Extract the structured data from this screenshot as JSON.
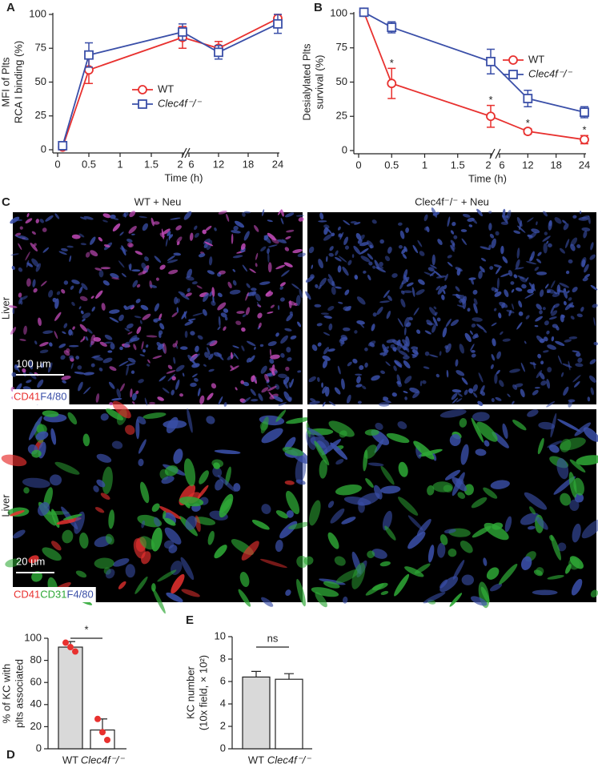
{
  "chart_data": [
    {
      "type": "line",
      "label": "A",
      "ylabel": [
        "MFI of Plts",
        "RCA I binding (%)"
      ],
      "xlabel": "Time (h)",
      "x": [
        0.08,
        0.5,
        2,
        12,
        24
      ],
      "x_segments": [
        {
          "xlim": [
            0,
            2
          ],
          "xticks": [
            0,
            0.5,
            1,
            1.5,
            2
          ]
        },
        {
          "xlim": [
            6,
            24
          ],
          "xticks": [
            6,
            12,
            18,
            24
          ]
        }
      ],
      "ylim": [
        0,
        100
      ],
      "yticks": [
        0,
        25,
        50,
        75,
        100
      ],
      "legend": "center",
      "series": [
        {
          "name": "WT",
          "color": "#e8312f",
          "marker": "circle",
          "values": [
            2,
            59,
            83,
            75,
            97
          ],
          "errors": [
            2,
            10,
            8,
            5,
            3
          ]
        },
        {
          "name": "Clec4f⁻/⁻",
          "color": "#3a4fa8",
          "marker": "square",
          "values": [
            3,
            70,
            87,
            72,
            93
          ],
          "errors": [
            2,
            9,
            6,
            5,
            7
          ]
        }
      ]
    },
    {
      "type": "line",
      "label": "B",
      "ylabel": [
        "Desialylated Plts",
        "survival (%)"
      ],
      "xlabel": "Time (h)",
      "x": [
        0.08,
        0.5,
        2,
        12,
        24
      ],
      "x_segments": [
        {
          "xlim": [
            0,
            2
          ],
          "xticks": [
            0,
            0.5,
            1,
            1.5,
            2
          ]
        },
        {
          "xlim": [
            6,
            24
          ],
          "xticks": [
            6,
            12,
            18,
            24
          ]
        }
      ],
      "ylim": [
        0,
        100
      ],
      "yticks": [
        0,
        25,
        50,
        75,
        100
      ],
      "legend": "upper right",
      "annotations": [
        {
          "text": "*",
          "x": 0.5
        },
        {
          "text": "*",
          "x": 2
        },
        {
          "text": "*",
          "x": 12
        },
        {
          "text": "*",
          "x": 24
        }
      ],
      "series": [
        {
          "name": "WT",
          "color": "#e8312f",
          "marker": "circle",
          "values": [
            101,
            49,
            25,
            14,
            8
          ],
          "errors": [
            1,
            11,
            8,
            2,
            3
          ]
        },
        {
          "name": "Clec4f⁻/⁻",
          "color": "#3a4fa8",
          "marker": "square",
          "values": [
            101,
            90,
            65,
            38,
            28
          ],
          "errors": [
            1,
            4,
            9,
            6,
            4
          ]
        }
      ]
    },
    {
      "type": "bar",
      "label": "D",
      "ylabel": [
        "% of KC with",
        "plts associated"
      ],
      "categories": [
        "WT",
        "Clec4f⁻/⁻"
      ],
      "values": [
        92,
        17
      ],
      "errors": [
        5,
        10
      ],
      "colors": [
        "#d9d9d9",
        "#ffffff"
      ],
      "points": [
        [
          96,
          92,
          88
        ],
        [
          27,
          15,
          8
        ]
      ],
      "point_color": "#e8312f",
      "ylim": [
        0,
        100
      ],
      "yticks": [
        0,
        20,
        40,
        60,
        80,
        100
      ],
      "significance": "*"
    },
    {
      "type": "bar",
      "label": "E",
      "ylabel": [
        "KC number",
        "(10x field, × 10²)"
      ],
      "categories": [
        "WT",
        "Clec4f⁻/⁻"
      ],
      "values": [
        6.4,
        6.2
      ],
      "errors": [
        0.5,
        0.5
      ],
      "colors": [
        "#d9d9d9",
        "#ffffff"
      ],
      "ylim": [
        0,
        10
      ],
      "yticks": [
        0,
        2,
        4,
        6,
        8,
        10
      ],
      "significance": "ns"
    }
  ],
  "panel_c": {
    "label": "C",
    "columns": [
      "WT + Neu",
      "Clec4f⁻/⁻ + Neu"
    ],
    "rows": [
      {
        "label": "Liver",
        "scale_bar": "100 µm",
        "channels": [
          {
            "name": "CD41",
            "color": "#e8312f"
          },
          {
            "name": "F4/80",
            "color": "#3a4fa8"
          }
        ]
      },
      {
        "label": "Liver",
        "scale_bar": "20 µm",
        "channels": [
          {
            "name": "CD41",
            "color": "#e8312f"
          },
          {
            "name": "CD31",
            "color": "#2ea836"
          },
          {
            "name": "F4/80",
            "color": "#3a4fa8"
          }
        ]
      }
    ]
  }
}
